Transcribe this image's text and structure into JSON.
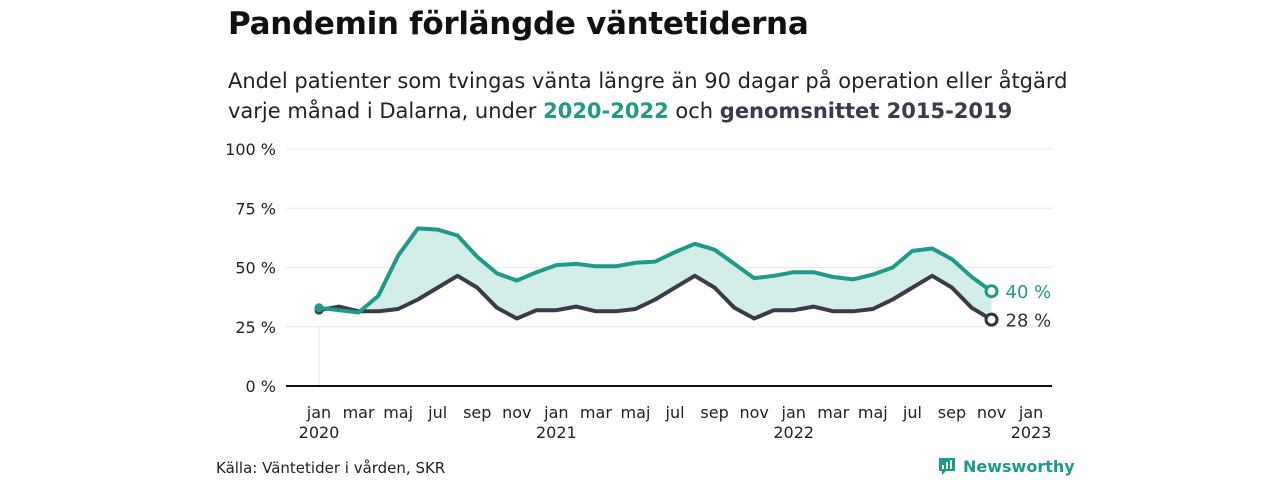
{
  "header": {
    "title": "Pandemin förlängde väntetiderna",
    "subtitle_line1": "Andel patienter som tvingas vänta längre än 90 dagar på operation eller åtgärd",
    "subtitle_line2_prefix": "varje månad i Dalarna, under ",
    "subtitle_highlight_1": "2020-2022",
    "subtitle_mid": " och ",
    "subtitle_highlight_2": "genomsnittet 2015-2019"
  },
  "footer": {
    "source": "Källa: Väntetider i vården, SKR",
    "brand": "Newsworthy"
  },
  "colors": {
    "series_2020_2022": "#1f9a8a",
    "series_avg": "#3a3a4a",
    "fill": "#d3ede8",
    "grid": "#e8e8e8",
    "axis": "#111111"
  },
  "chart_data": {
    "type": "line",
    "y_ticks": [
      {
        "value": 0,
        "label": "0 %"
      },
      {
        "value": 25,
        "label": "25 %"
      },
      {
        "value": 50,
        "label": "50 %"
      },
      {
        "value": 75,
        "label": "75 %"
      },
      {
        "value": 100,
        "label": "100 %"
      }
    ],
    "ylim": [
      0,
      100
    ],
    "grid": true,
    "x_ticks": [
      {
        "month": 0,
        "label": "jan",
        "year": "2020"
      },
      {
        "month": 2,
        "label": "mar"
      },
      {
        "month": 4,
        "label": "maj"
      },
      {
        "month": 6,
        "label": "jul"
      },
      {
        "month": 8,
        "label": "sep"
      },
      {
        "month": 10,
        "label": "nov"
      },
      {
        "month": 12,
        "label": "jan",
        "year": "2021"
      },
      {
        "month": 14,
        "label": "mar"
      },
      {
        "month": 16,
        "label": "maj"
      },
      {
        "month": 18,
        "label": "jul"
      },
      {
        "month": 20,
        "label": "sep"
      },
      {
        "month": 22,
        "label": "nov"
      },
      {
        "month": 24,
        "label": "jan",
        "year": "2022"
      },
      {
        "month": 26,
        "label": "mar"
      },
      {
        "month": 28,
        "label": "maj"
      },
      {
        "month": 30,
        "label": "jul"
      },
      {
        "month": 32,
        "label": "sep"
      },
      {
        "month": 34,
        "label": "nov"
      },
      {
        "month": 36,
        "label": "jan",
        "year": "2023"
      }
    ],
    "series": [
      {
        "id": "series_2020_2022",
        "values": [
          33,
          32,
          31,
          38,
          55,
          66.5,
          66,
          63.5,
          54.5,
          47.5,
          44.5,
          48,
          51,
          51.5,
          50.5,
          50.5,
          52,
          52.5,
          56.5,
          60,
          57.5,
          51.5,
          45.5,
          46.5,
          48,
          48,
          46,
          45,
          47,
          50,
          57,
          58,
          53.5,
          46,
          40
        ],
        "end_label": "40 %"
      },
      {
        "id": "series_avg",
        "values": [
          32,
          33.5,
          31.5,
          31.5,
          32.5,
          36.5,
          41.5,
          46.5,
          41.5,
          33,
          28.5,
          32,
          32,
          33.5,
          31.5,
          31.5,
          32.5,
          36.5,
          41.5,
          46.5,
          41.5,
          33,
          28.5,
          32,
          32,
          33.5,
          31.5,
          31.5,
          32.5,
          36.5,
          41.5,
          46.5,
          41.5,
          33,
          28
        ],
        "end_label": "28 %"
      }
    ]
  }
}
